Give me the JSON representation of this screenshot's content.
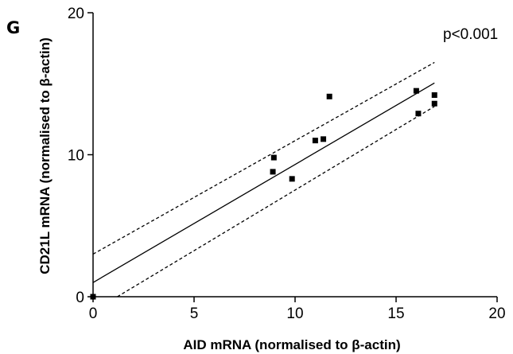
{
  "panel_label": "G",
  "chart_data": {
    "type": "scatter",
    "xlabel": "AID mRNA (normalised to β-actin)",
    "ylabel": "CD21L mRNA (normalised to β-actin)",
    "xlim": [
      0,
      20
    ],
    "ylim": [
      0,
      20
    ],
    "x_ticks": [
      0,
      5,
      10,
      15,
      20
    ],
    "y_ticks": [
      0,
      10,
      20
    ],
    "x_tick_labels": [
      "0",
      "5",
      "10",
      "15",
      "20"
    ],
    "y_tick_labels": [
      "0",
      "10",
      "20"
    ],
    "annotation": "p<0.001",
    "grid": false,
    "points": [
      {
        "x": 0.0,
        "y": 0.0
      },
      {
        "x": 8.9,
        "y": 8.8
      },
      {
        "x": 8.95,
        "y": 9.8
      },
      {
        "x": 9.85,
        "y": 8.3
      },
      {
        "x": 11.0,
        "y": 11.0
      },
      {
        "x": 11.4,
        "y": 11.1
      },
      {
        "x": 11.7,
        "y": 14.1
      },
      {
        "x": 16.0,
        "y": 14.5
      },
      {
        "x": 16.1,
        "y": 12.9
      },
      {
        "x": 16.9,
        "y": 14.2
      },
      {
        "x": 16.9,
        "y": 13.6
      }
    ],
    "regression_line": {
      "x": [
        0,
        16.9
      ],
      "y": [
        1.0,
        15.05
      ]
    },
    "confidence_band_upper": {
      "x": [
        0,
        16.9
      ],
      "y": [
        3.0,
        16.5
      ]
    },
    "confidence_band_lower": {
      "x": [
        1.2,
        16.9
      ],
      "y": [
        0,
        13.4
      ]
    }
  }
}
